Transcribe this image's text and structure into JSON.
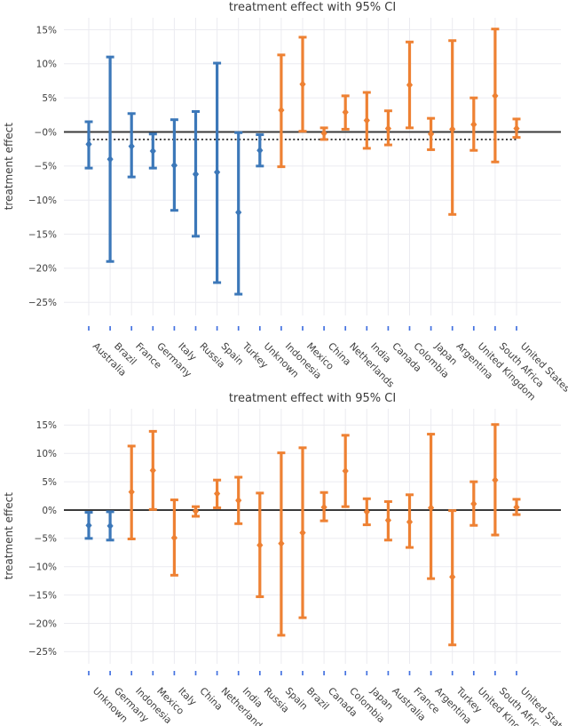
{
  "colors": {
    "blue_series": "#3c78b9",
    "orange_series": "#ee8133",
    "zero_line": "#3a3a3a",
    "dashed_line": "#333333",
    "grid": "#ebebf0",
    "axis_text": "#3d3d3d",
    "x_tick_mark": "#4472e0",
    "background": "#ffffff"
  },
  "chart_data": [
    {
      "type": "scatter",
      "subtype": "error-bar-95ci",
      "title": "treatment effect with 95% CI",
      "ylabel": "treatment effect",
      "xlabel": "",
      "grid": true,
      "zero_line": 0,
      "dashed_mean_line": -1.1,
      "x_tick_angle": 45,
      "ylim": [
        -27,
        17
      ],
      "ytick_values": [
        15,
        10,
        5,
        0,
        -5,
        -10,
        -15,
        -20,
        -25
      ],
      "ytick_labels": [
        "15%",
        "10%",
        "5%",
        "−0%",
        "−5%",
        "−10%",
        "−15%",
        "−20%",
        "−25%"
      ],
      "points": [
        {
          "label": "Australia",
          "value": -1.8,
          "ci_low": -5.3,
          "ci_high": 1.5,
          "color": "blue"
        },
        {
          "label": "Brazil",
          "value": -4.0,
          "ci_low": -19.0,
          "ci_high": 11.0,
          "color": "blue"
        },
        {
          "label": "France",
          "value": -2.1,
          "ci_low": -6.6,
          "ci_high": 2.7,
          "color": "blue"
        },
        {
          "label": "Germany",
          "value": -2.8,
          "ci_low": -5.3,
          "ci_high": -0.3,
          "color": "blue"
        },
        {
          "label": "Italy",
          "value": -4.9,
          "ci_low": -11.5,
          "ci_high": 1.8,
          "color": "blue"
        },
        {
          "label": "Russia",
          "value": -6.2,
          "ci_low": -15.3,
          "ci_high": 3.0,
          "color": "blue"
        },
        {
          "label": "Spain",
          "value": -5.9,
          "ci_low": -22.1,
          "ci_high": 10.1,
          "color": "blue"
        },
        {
          "label": "Turkey",
          "value": -11.8,
          "ci_low": -23.8,
          "ci_high": -0.1,
          "color": "blue"
        },
        {
          "label": "Unknown",
          "value": -2.7,
          "ci_low": -5.0,
          "ci_high": -0.4,
          "color": "blue"
        },
        {
          "label": "Indonesia",
          "value": 3.2,
          "ci_low": -5.1,
          "ci_high": 11.3,
          "color": "orange"
        },
        {
          "label": "Mexico",
          "value": 7.0,
          "ci_low": 0.1,
          "ci_high": 13.9,
          "color": "orange"
        },
        {
          "label": "China",
          "value": -0.2,
          "ci_low": -1.1,
          "ci_high": 0.6,
          "color": "orange"
        },
        {
          "label": "Netherlands",
          "value": 2.9,
          "ci_low": 0.4,
          "ci_high": 5.3,
          "color": "orange"
        },
        {
          "label": "India",
          "value": 1.7,
          "ci_low": -2.4,
          "ci_high": 5.8,
          "color": "orange"
        },
        {
          "label": "Canada",
          "value": 0.5,
          "ci_low": -1.9,
          "ci_high": 3.1,
          "color": "orange"
        },
        {
          "label": "Colombia",
          "value": 6.9,
          "ci_low": 0.6,
          "ci_high": 13.2,
          "color": "orange"
        },
        {
          "label": "Japan",
          "value": -0.3,
          "ci_low": -2.6,
          "ci_high": 2.0,
          "color": "orange"
        },
        {
          "label": "Argentina",
          "value": 0.4,
          "ci_low": -12.1,
          "ci_high": 13.4,
          "color": "orange"
        },
        {
          "label": "United Kingdom",
          "value": 1.1,
          "ci_low": -2.7,
          "ci_high": 5.0,
          "color": "orange"
        },
        {
          "label": "South Africa",
          "value": 5.3,
          "ci_low": -4.4,
          "ci_high": 15.1,
          "color": "orange"
        },
        {
          "label": "United States",
          "value": 0.5,
          "ci_low": -0.8,
          "ci_high": 1.9,
          "color": "orange"
        }
      ]
    },
    {
      "type": "scatter",
      "subtype": "error-bar-95ci",
      "title": "treatment effect with 95% CI",
      "ylabel": "treatment effect",
      "xlabel": "",
      "grid": true,
      "zero_line": 0,
      "dashed_mean_line": null,
      "x_tick_angle": 45,
      "ylim": [
        -27,
        18
      ],
      "ytick_values": [
        15,
        10,
        5,
        0,
        -5,
        -10,
        -15,
        -20,
        -25
      ],
      "ytick_labels": [
        "15%",
        "10%",
        "5%",
        "0%",
        "−5%",
        "−10%",
        "−15%",
        "−20%",
        "−25%"
      ],
      "points": [
        {
          "label": "Unknown",
          "value": -2.7,
          "ci_low": -5.0,
          "ci_high": -0.4,
          "color": "blue"
        },
        {
          "label": "Germany",
          "value": -2.8,
          "ci_low": -5.3,
          "ci_high": -0.3,
          "color": "blue"
        },
        {
          "label": "Indonesia",
          "value": 3.2,
          "ci_low": -5.1,
          "ci_high": 11.3,
          "color": "orange"
        },
        {
          "label": "Mexico",
          "value": 7.0,
          "ci_low": 0.1,
          "ci_high": 13.9,
          "color": "orange"
        },
        {
          "label": "Italy",
          "value": -4.9,
          "ci_low": -11.5,
          "ci_high": 1.8,
          "color": "orange"
        },
        {
          "label": "China",
          "value": -0.2,
          "ci_low": -1.1,
          "ci_high": 0.6,
          "color": "orange"
        },
        {
          "label": "Netherlands",
          "value": 2.9,
          "ci_low": 0.4,
          "ci_high": 5.3,
          "color": "orange"
        },
        {
          "label": "India",
          "value": 1.7,
          "ci_low": -2.4,
          "ci_high": 5.8,
          "color": "orange"
        },
        {
          "label": "Russia",
          "value": -6.2,
          "ci_low": -15.3,
          "ci_high": 3.0,
          "color": "orange"
        },
        {
          "label": "Spain",
          "value": -5.9,
          "ci_low": -22.1,
          "ci_high": 10.1,
          "color": "orange"
        },
        {
          "label": "Brazil",
          "value": -4.0,
          "ci_low": -19.0,
          "ci_high": 11.0,
          "color": "orange"
        },
        {
          "label": "Canada",
          "value": 0.5,
          "ci_low": -1.9,
          "ci_high": 3.1,
          "color": "orange"
        },
        {
          "label": "Colombia",
          "value": 6.9,
          "ci_low": 0.6,
          "ci_high": 13.2,
          "color": "orange"
        },
        {
          "label": "Japan",
          "value": -0.3,
          "ci_low": -2.6,
          "ci_high": 2.0,
          "color": "orange"
        },
        {
          "label": "Australia",
          "value": -1.8,
          "ci_low": -5.3,
          "ci_high": 1.5,
          "color": "orange"
        },
        {
          "label": "France",
          "value": -2.1,
          "ci_low": -6.6,
          "ci_high": 2.7,
          "color": "orange"
        },
        {
          "label": "Argentina",
          "value": 0.4,
          "ci_low": -12.1,
          "ci_high": 13.4,
          "color": "orange"
        },
        {
          "label": "Turkey",
          "value": -11.8,
          "ci_low": -23.8,
          "ci_high": -0.1,
          "color": "orange"
        },
        {
          "label": "United Kingdom",
          "value": 1.1,
          "ci_low": -2.7,
          "ci_high": 5.0,
          "color": "orange"
        },
        {
          "label": "South Africa",
          "value": 5.3,
          "ci_low": -4.4,
          "ci_high": 15.1,
          "color": "orange"
        },
        {
          "label": "United States",
          "value": 0.5,
          "ci_low": -0.8,
          "ci_high": 1.9,
          "color": "orange"
        }
      ]
    }
  ]
}
